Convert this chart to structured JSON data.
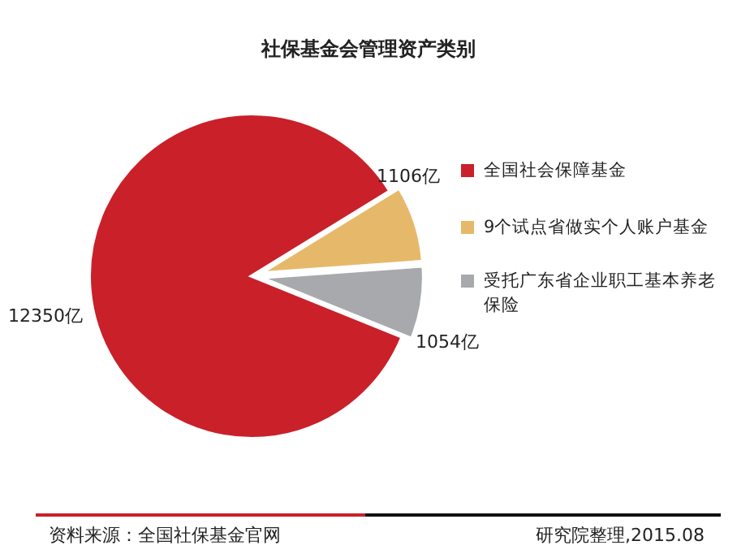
{
  "chart_data": {
    "type": "pie",
    "title": "社保基金会管理资产类别",
    "categories": [
      "全国社会保障基金",
      "9个试点省做实个人账户基金",
      "受托广东省企业职工基本养老保险"
    ],
    "values": [
      12350,
      1106,
      1054
    ],
    "colors": [
      "#c9202a",
      "#e6b96a",
      "#a7a9ac"
    ],
    "value_labels": [
      "12350亿",
      "1106亿",
      "1054亿"
    ],
    "legend": "right",
    "annotations": [
      "资料来源：全国社保基金官网",
      "研究院整理,2015.08"
    ]
  }
}
